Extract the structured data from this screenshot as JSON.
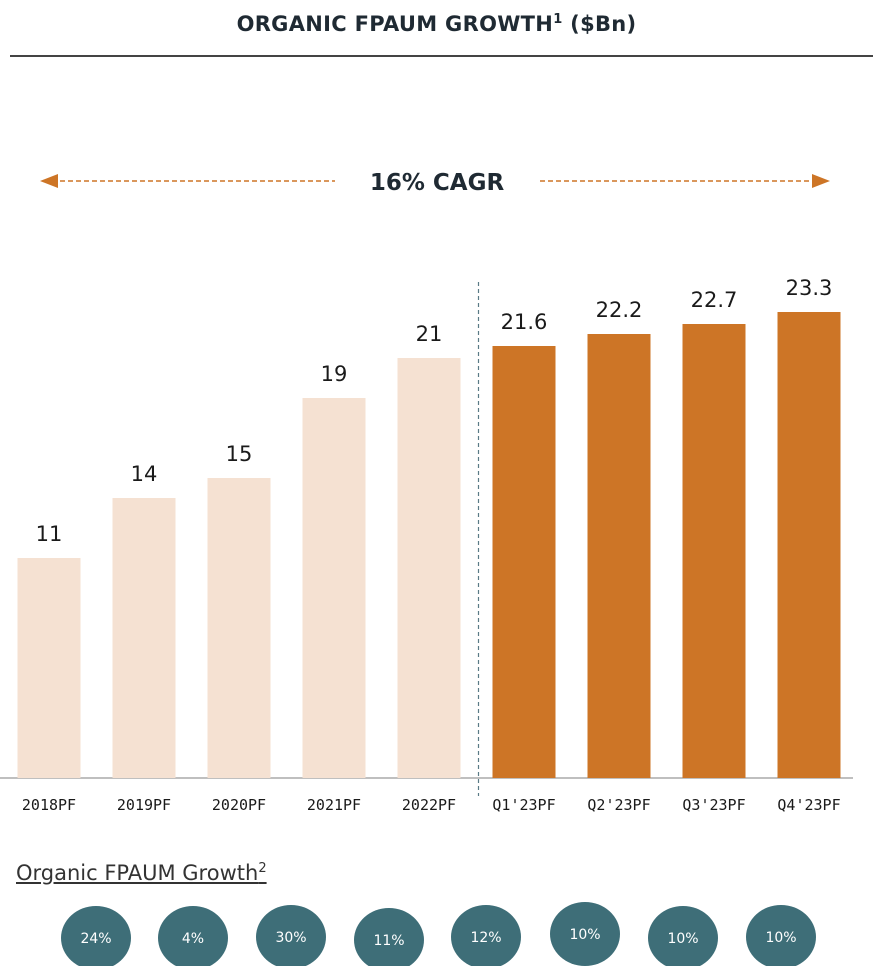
{
  "title": "ORGANIC FPAUM GROWTH",
  "title_sup": "1",
  "title_unit": "($Bn)",
  "cagr_label": "16% CAGR",
  "colors": {
    "historical": "#f5e1d2",
    "quarterly": "#cd7526",
    "cagr_arrow": "#cd7526",
    "bubble": "#3e6e78",
    "divider": "#5a7a86"
  },
  "chart_data": {
    "type": "bar",
    "title": "ORGANIC FPAUM GROWTH¹ ($Bn)",
    "categories": [
      "2018PF",
      "2019PF",
      "2020PF",
      "2021PF",
      "2022PF",
      "Q1'23PF",
      "Q2'23PF",
      "Q3'23PF",
      "Q4'23PF"
    ],
    "values": [
      11,
      14,
      15,
      19,
      21,
      21.6,
      22.2,
      22.7,
      23.3
    ],
    "value_labels": [
      "11",
      "14",
      "15",
      "19",
      "21",
      "21.6",
      "22.2",
      "22.7",
      "23.3"
    ],
    "ylim": [
      0,
      25
    ],
    "grid": false,
    "annotation": "16% CAGR"
  },
  "growth": {
    "label": "Organic FPAUM Growth",
    "label_sup": "2",
    "values": [
      "24%",
      "4%",
      "30%",
      "11%",
      "12%",
      "10%",
      "10%",
      "10%"
    ]
  }
}
